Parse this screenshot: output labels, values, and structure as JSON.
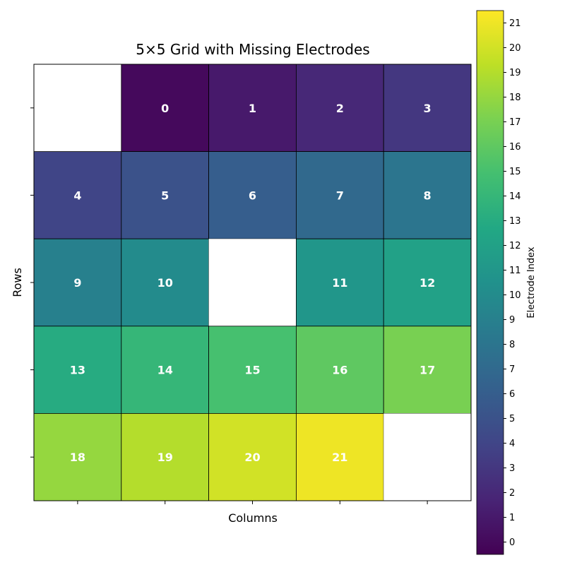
{
  "chart_data": {
    "type": "heatmap",
    "title": "5×5 Grid with Missing Electrodes",
    "xlabel": "Columns",
    "ylabel": "Rows",
    "rows": 5,
    "cols": 5,
    "grid": [
      [
        null,
        0,
        1,
        2,
        3
      ],
      [
        4,
        5,
        6,
        7,
        8
      ],
      [
        9,
        10,
        null,
        11,
        12
      ],
      [
        13,
        14,
        15,
        16,
        17
      ],
      [
        18,
        19,
        20,
        21,
        null
      ]
    ],
    "colormap": "viridis",
    "vmin": -0.5,
    "vmax": 21.5,
    "colorbar": {
      "label": "Electrode Index",
      "ticks": [
        0,
        1,
        2,
        3,
        4,
        5,
        6,
        7,
        8,
        9,
        10,
        11,
        12,
        13,
        14,
        15,
        16,
        17,
        18,
        19,
        20,
        21
      ]
    },
    "missing_color": "#ffffff",
    "cell_edge_color": "#000000",
    "label_color": "#ffffff"
  }
}
